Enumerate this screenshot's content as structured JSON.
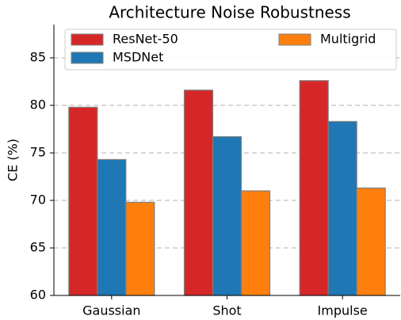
{
  "chart_data": {
    "type": "bar",
    "title": "Architecture Noise Robustness",
    "ylabel": "CE (%)",
    "categories": [
      "Gaussian",
      "Shot",
      "Impulse"
    ],
    "series": [
      {
        "name": "ResNet-50",
        "color": "#d62728",
        "values": [
          79.8,
          81.6,
          82.6
        ]
      },
      {
        "name": "MSDNet",
        "color": "#1f77b4",
        "values": [
          74.3,
          76.7,
          78.3
        ]
      },
      {
        "name": "Multigrid",
        "color": "#ff7f0e",
        "values": [
          69.8,
          71.0,
          71.3
        ]
      }
    ],
    "ylim": [
      60,
      88.5
    ],
    "yticks": [
      60,
      65,
      70,
      75,
      80,
      85
    ],
    "grid": true,
    "legend": "upper"
  }
}
